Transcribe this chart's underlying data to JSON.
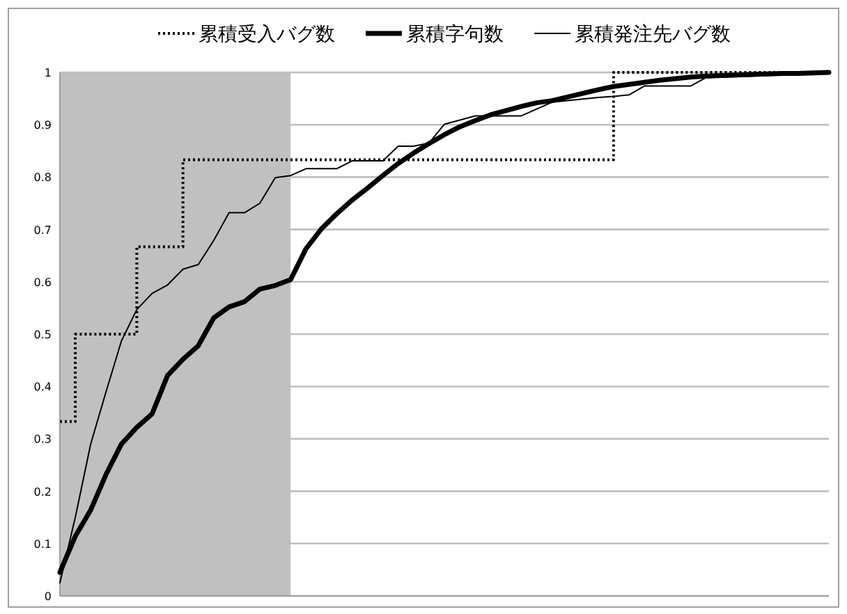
{
  "chart_data": {
    "type": "line",
    "categories": [
      null,
      null,
      null,
      null,
      null,
      null,
      null,
      null,
      null,
      null,
      null,
      null,
      null,
      null,
      null,
      null,
      null,
      null,
      null,
      null,
      null,
      null,
      null,
      null,
      null,
      null,
      null,
      null,
      null,
      null,
      null,
      null,
      null,
      null,
      null,
      null,
      null,
      null,
      null,
      null,
      null,
      null,
      null,
      null,
      null,
      null,
      null,
      null,
      null,
      null,
      null
    ],
    "ylim": [
      0,
      1
    ],
    "yticks": [
      0,
      0.1,
      0.2,
      0.3,
      0.4,
      0.5,
      0.6,
      0.7,
      0.8,
      0.9,
      1
    ],
    "grid": "y",
    "legend": "top",
    "series": [
      {
        "name": "累積受入バグ数",
        "type": "step",
        "color": "#000000",
        "line_style": "dotted",
        "values": [
          0.333,
          0.5,
          0.5,
          0.5,
          0.5,
          0.667,
          0.667,
          0.667,
          0.833,
          0.833,
          0.833,
          0.833,
          0.833,
          0.833,
          0.833,
          0.833,
          0.833,
          0.833,
          0.833,
          0.833,
          0.833,
          0.833,
          0.833,
          0.833,
          0.833,
          0.833,
          0.833,
          0.833,
          0.833,
          0.833,
          0.833,
          0.833,
          0.833,
          0.833,
          0.833,
          0.833,
          1,
          1,
          1,
          1,
          1,
          1,
          1,
          1,
          1,
          1,
          1,
          1,
          1,
          1,
          1
        ]
      },
      {
        "name": "累積字句数",
        "color": "#000000",
        "line_style": "solid",
        "values": [
          0.045,
          0.114,
          0.164,
          0.232,
          0.29,
          0.322,
          0.348,
          0.421,
          0.452,
          0.478,
          0.531,
          0.552,
          0.562,
          0.586,
          0.593,
          0.604,
          0.663,
          0.701,
          0.73,
          0.756,
          0.779,
          0.803,
          0.826,
          0.846,
          0.864,
          0.881,
          0.896,
          0.908,
          0.919,
          0.927,
          0.935,
          0.942,
          0.946,
          0.953,
          0.96,
          0.967,
          0.973,
          0.977,
          0.981,
          0.985,
          0.988,
          0.991,
          0.993,
          0.994,
          0.995,
          0.996,
          0.997,
          0.998,
          0.998,
          0.999,
          1.0
        ]
      },
      {
        "name": "累積発注先バグ数",
        "color": "#000000",
        "line_style": "solid",
        "values": [
          0.025,
          0.15,
          0.29,
          0.39,
          0.487,
          0.547,
          0.578,
          0.594,
          0.624,
          0.633,
          0.679,
          0.732,
          0.732,
          0.75,
          0.799,
          0.803,
          0.816,
          0.816,
          0.816,
          0.831,
          0.831,
          0.831,
          0.859,
          0.859,
          0.865,
          0.901,
          0.909,
          0.917,
          0.917,
          0.917,
          0.917,
          0.93,
          0.943,
          0.946,
          0.949,
          0.952,
          0.954,
          0.957,
          0.974,
          0.974,
          0.974,
          0.974,
          0.99,
          0.991,
          0.992,
          0.993,
          0.994,
          0.995,
          0.997,
          0.998,
          1.0
        ]
      }
    ]
  }
}
